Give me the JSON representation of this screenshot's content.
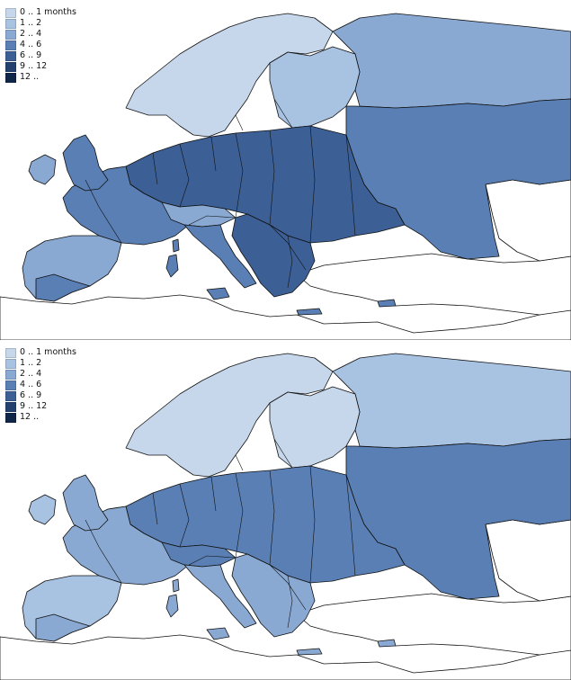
{
  "maps": [
    {
      "id": "top",
      "legend": [
        {
          "label": "0 .. 1 months",
          "color": "#c6d7ec"
        },
        {
          "label": "1 .. 2",
          "color": "#a8c2e2"
        },
        {
          "label": "2 .. 4",
          "color": "#89a9d3"
        },
        {
          "label": "4 .. 6",
          "color": "#5a7fb4"
        },
        {
          "label": "6 .. 9",
          "color": "#3c5f95"
        },
        {
          "label": "9 .. 12",
          "color": "#23406e"
        },
        {
          "label": "12 ..",
          "color": "#0f2648"
        }
      ],
      "regions": {
        "scandinavia": "0 .. 1 months",
        "finland_baltic": "1 .. 2",
        "russia_north": "2 .. 4",
        "russia_south": "4 .. 6",
        "central_europe": "6 .. 9",
        "western_europe": "4 .. 6",
        "iberia": "2 .. 4",
        "iberia_south": "4 .. 6",
        "italy": "4 .. 6",
        "balkans": "6 .. 9",
        "uk": "4 .. 6",
        "ireland": "2 .. 4",
        "alps": "2 .. 4"
      }
    },
    {
      "id": "bottom",
      "legend": [
        {
          "label": "0 .. 1 months",
          "color": "#c6d7ec"
        },
        {
          "label": "1 .. 2",
          "color": "#a8c2e2"
        },
        {
          "label": "2 .. 4",
          "color": "#89a9d3"
        },
        {
          "label": "4 .. 6",
          "color": "#5a7fb4"
        },
        {
          "label": "6 .. 9",
          "color": "#3c5f95"
        },
        {
          "label": "9 .. 12",
          "color": "#23406e"
        },
        {
          "label": "12 ..",
          "color": "#0f2648"
        }
      ],
      "regions": {
        "scandinavia": "0 .. 1 months",
        "finland_baltic": "0 .. 1 months",
        "russia_north": "1 .. 2",
        "russia_south": "4 .. 6",
        "central_europe": "4 .. 6",
        "western_europe": "2 .. 4",
        "iberia": "1 .. 2",
        "iberia_south": "2 .. 4",
        "italy": "2 .. 4",
        "balkans": "2 .. 4",
        "uk": "2 .. 4",
        "ireland": "1 .. 2",
        "alps": "4 .. 6"
      }
    }
  ]
}
